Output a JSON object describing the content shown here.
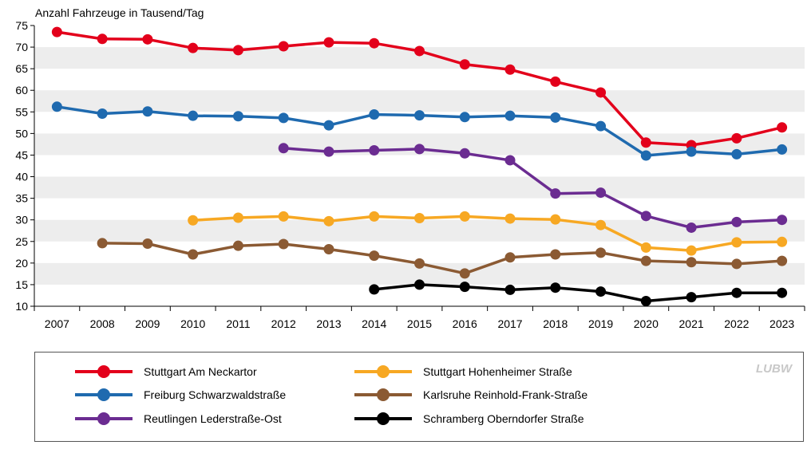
{
  "chart_data": {
    "type": "line",
    "ylabel": "Anzahl Fahrzeuge in Tausend/Tag",
    "ylim": [
      10,
      75
    ],
    "yticks": [
      10,
      15,
      20,
      25,
      30,
      35,
      40,
      45,
      50,
      55,
      60,
      65,
      70,
      75
    ],
    "grid": "alternating horizontal bands",
    "legend_position": "bottom",
    "categories": [
      "2007",
      "2008",
      "2009",
      "2010",
      "2011",
      "2012",
      "2013",
      "2014",
      "2015",
      "2016",
      "2017",
      "2018",
      "2019",
      "2020",
      "2021",
      "2022",
      "2023"
    ],
    "series": [
      {
        "name": "Stuttgart Am Neckartor",
        "color": "#e3001b",
        "values": [
          73.5,
          71.9,
          71.8,
          69.8,
          69.3,
          70.2,
          71.1,
          70.9,
          69.1,
          66.0,
          64.8,
          62.0,
          59.5,
          47.9,
          47.3,
          48.9,
          51.4
        ]
      },
      {
        "name": "Freiburg Schwarzwaldstraße",
        "color": "#1f6aaf",
        "values": [
          56.2,
          54.6,
          55.1,
          54.1,
          54.0,
          53.6,
          51.9,
          54.4,
          54.2,
          53.8,
          54.1,
          53.7,
          51.7,
          44.9,
          45.8,
          45.2,
          46.3
        ]
      },
      {
        "name": "Stuttgart Hohenheimer Straße",
        "color": "#f7a823",
        "values": [
          null,
          null,
          null,
          29.9,
          30.5,
          30.8,
          29.7,
          30.8,
          30.4,
          30.8,
          30.3,
          30.1,
          28.8,
          23.6,
          22.9,
          24.8,
          24.9
        ]
      },
      {
        "name": "Karlsruhe Reinhold-Frank-Straße",
        "color": "#8b5a33",
        "values": [
          null,
          24.6,
          24.5,
          22.0,
          24.0,
          24.4,
          23.2,
          21.7,
          19.9,
          17.6,
          21.3,
          22.0,
          22.4,
          20.5,
          20.2,
          19.8,
          20.5
        ]
      },
      {
        "name": "Reutlingen Lederstraße-Ost",
        "color": "#6b2c91",
        "values": [
          null,
          null,
          null,
          null,
          null,
          46.6,
          45.8,
          46.1,
          46.4,
          45.4,
          43.8,
          36.1,
          36.3,
          30.9,
          28.2,
          29.5,
          30.0
        ]
      },
      {
        "name": "Schramberg Oberndorfer Straße",
        "color": "#000000",
        "values": [
          null,
          null,
          null,
          null,
          null,
          null,
          null,
          13.9,
          15.0,
          14.5,
          13.8,
          14.3,
          13.4,
          11.2,
          12.1,
          13.1,
          13.1
        ]
      }
    ]
  },
  "legend": {
    "items": [
      {
        "label": "Stuttgart Am Neckartor",
        "color": "#e3001b"
      },
      {
        "label": "Freiburg Schwarzwaldstraße",
        "color": "#1f6aaf"
      },
      {
        "label": "Reutlingen Lederstraße-Ost",
        "color": "#6b2c91"
      },
      {
        "label": "Stuttgart Hohenheimer Straße",
        "color": "#f7a823"
      },
      {
        "label": "Karlsruhe Reinhold-Frank-Straße",
        "color": "#8b5a33"
      },
      {
        "label": "Schramberg Oberndorfer Straße",
        "color": "#000000"
      }
    ]
  },
  "logo": "LUBW"
}
